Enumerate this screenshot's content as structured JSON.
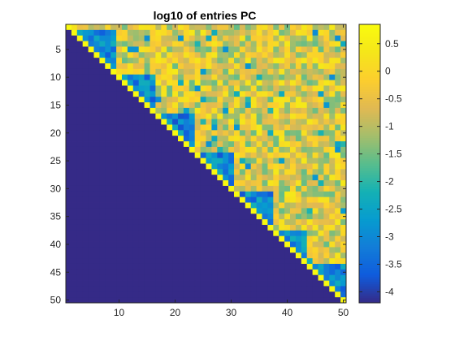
{
  "chart_data": {
    "type": "heatmap",
    "title": "log10 of entries PC",
    "xlabel": "",
    "ylabel": "",
    "rows": 50,
    "cols": 50,
    "xlim": [
      0.5,
      50.5
    ],
    "ylim": [
      0.5,
      50.5
    ],
    "y_direction": "reverse",
    "x_ticks": [
      10,
      20,
      30,
      40,
      50
    ],
    "y_ticks": [
      5,
      10,
      15,
      20,
      25,
      30,
      35,
      40,
      45,
      50
    ],
    "colormap": "parula",
    "color_range": [
      -4.2,
      0.85
    ],
    "colorbar": {
      "location": "right",
      "ticks": [
        0.5,
        0,
        -0.5,
        -1,
        -1.5,
        -2,
        -2.5,
        -3,
        -3.5,
        -4
      ],
      "tick_labels": [
        "0.5",
        "0",
        "-0.5",
        "-1",
        "-1.5",
        "-2",
        "-2.5",
        "-3",
        "-3.5",
        "-4"
      ]
    },
    "structure": {
      "description_pattern": "block upper-triangular",
      "block_boundaries": [
        1,
        2,
        10,
        17,
        24,
        31,
        38,
        44,
        51
      ],
      "lower_fill_value": -4.2,
      "diagonal_value": 0.8,
      "near_diagonal_range": [
        -3.8,
        -2.2
      ],
      "off_block_range": [
        -1.6,
        0.4
      ]
    }
  }
}
